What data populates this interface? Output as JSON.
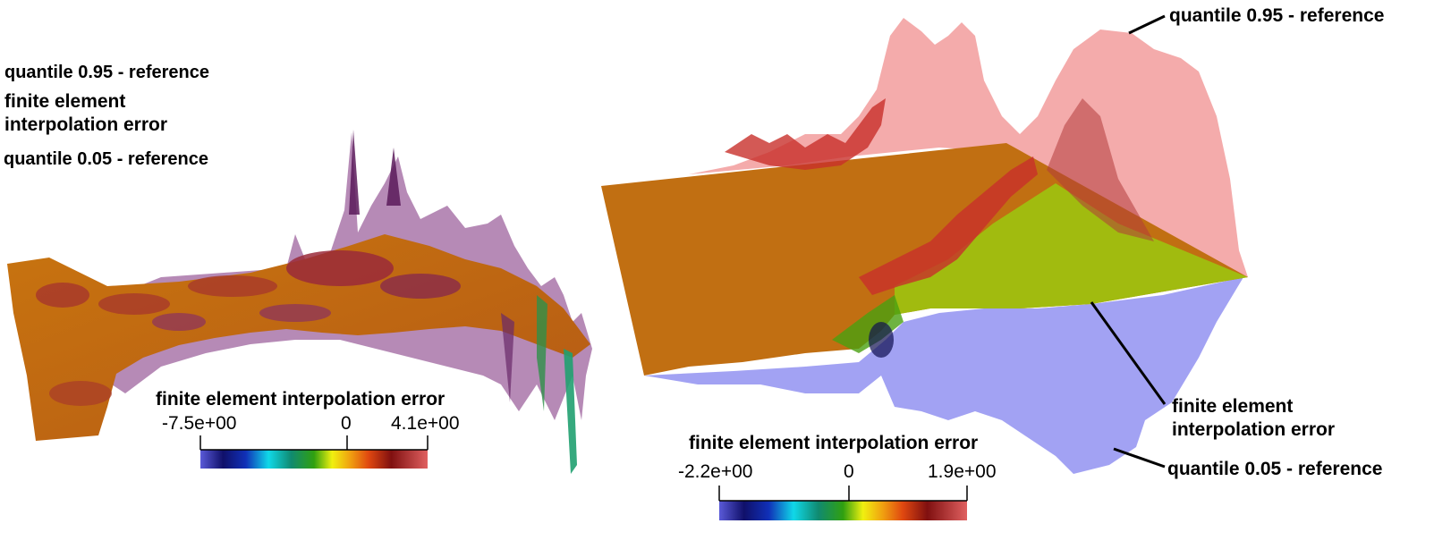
{
  "left_panel": {
    "labels": {
      "q95": "quantile 0.95 - reference",
      "fe_line1": "finite element",
      "fe_line2": "interpolation error",
      "q05": "quantile 0.05 - reference"
    },
    "colorbar": {
      "title": "finite element interpolation error",
      "min_label": "-7.5e+00",
      "mid_label": "0",
      "max_label": "4.1e+00"
    }
  },
  "right_panel": {
    "labels": {
      "q95": "quantile 0.95 - reference",
      "fe_line1": "finite element",
      "fe_line2": "interpolation error",
      "q05": "quantile 0.05 - reference"
    },
    "colorbar": {
      "title": "finite element interpolation error",
      "min_label": "-2.2e+00",
      "mid_label": "0",
      "max_label": "1.9e+00"
    }
  },
  "colors": {
    "upper_surface": "#f08a8a",
    "lower_surface": "#7f7fee",
    "error_orange": "#c96a14",
    "error_green": "#9fbf10",
    "error_purple": "#6a1f6a"
  }
}
